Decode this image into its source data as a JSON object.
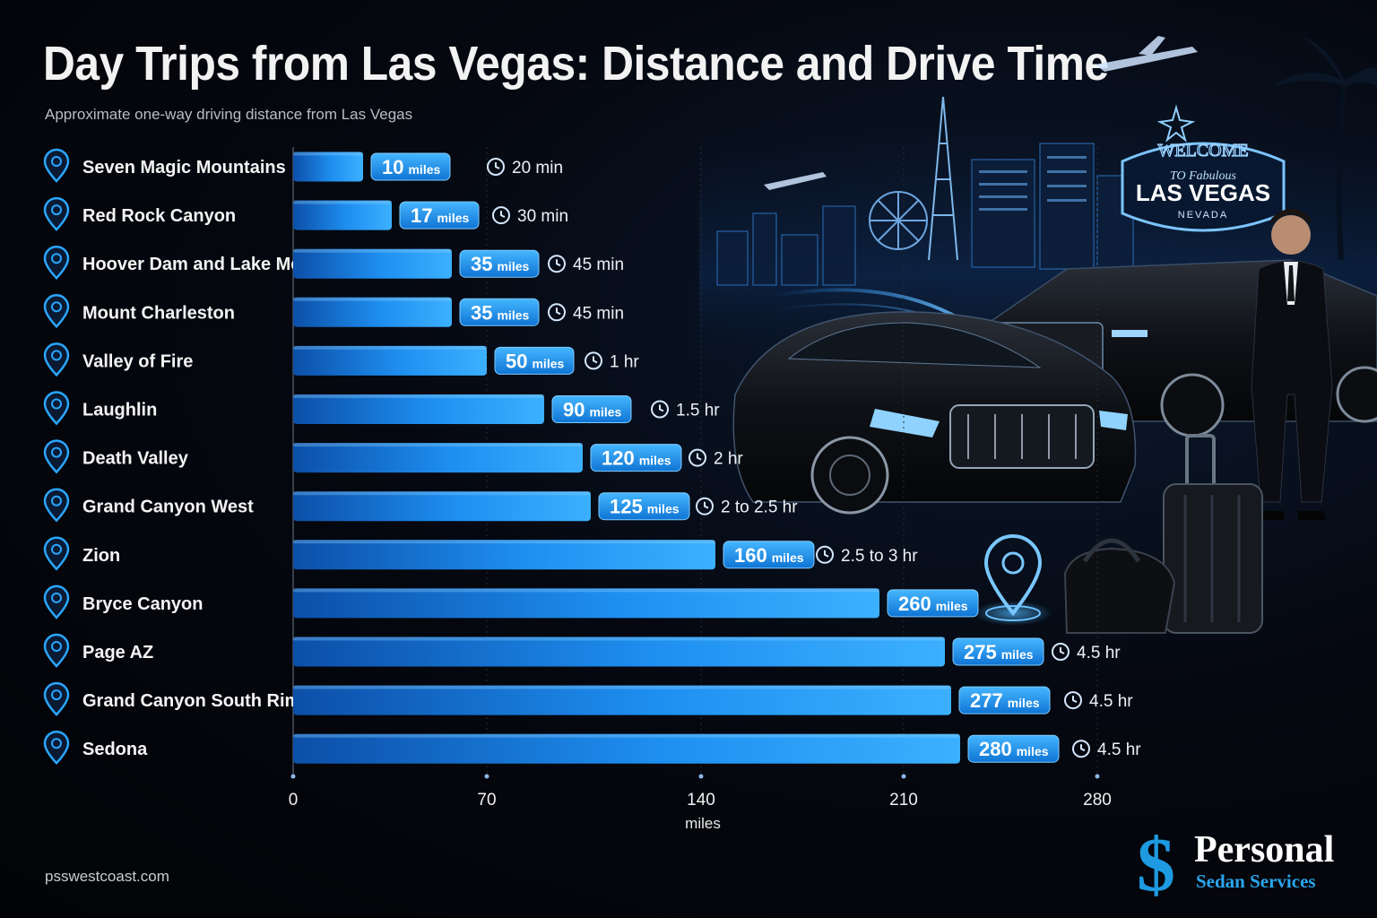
{
  "header": {
    "title": "Day Trips from Las Vegas: Distance and Drive Time",
    "subtitle": "Approximate one-way driving distance from Las Vegas"
  },
  "footer": {
    "url": "psswestcoast.com"
  },
  "logo": {
    "mark": "$",
    "name": "Personal",
    "tagline": "Sedan Services"
  },
  "sign": {
    "welcome": "WELCOME",
    "to_fabulous": "TO Fabulous",
    "city": "LAS VEGAS",
    "state": "NEVADA"
  },
  "chart_data": {
    "type": "bar",
    "orientation": "horizontal",
    "title": "Day Trips from Las Vegas: Distance and Drive Time",
    "subtitle": "Approximate one-way driving distance from Las Vegas",
    "xlabel": "miles",
    "xlim": [
      0,
      280
    ],
    "xticks": [
      0,
      70,
      140,
      210,
      280
    ],
    "value_unit": "miles",
    "categories": [
      "Seven Magic Mountains",
      "Red Rock Canyon",
      "Hoover Dam and Lake Mead",
      "Mount Charleston",
      "Valley of Fire",
      "Laughlin",
      "Death Valley",
      "Grand Canyon West",
      "Zion",
      "Bryce Canyon",
      "Page AZ",
      "Grand Canyon South Rim",
      "Sedona"
    ],
    "values": [
      10,
      17,
      35,
      35,
      50,
      90,
      120,
      125,
      160,
      260,
      275,
      277,
      280
    ],
    "drive_times": [
      "20 min",
      "30 min",
      "45 min",
      "45 min",
      "1 hr",
      "1.5 hr",
      "2 hr",
      "2 to 2.5 hr",
      "2.5 to 3 hr",
      "",
      "4.5 hr",
      "4.5 hr",
      "4.5 hr"
    ],
    "grid": true,
    "bar_color": "#1e8ff0",
    "accent_color": "#2aa6ff"
  },
  "icons": {
    "row_marker": "map-pin-icon",
    "time_marker": "clock-icon"
  }
}
